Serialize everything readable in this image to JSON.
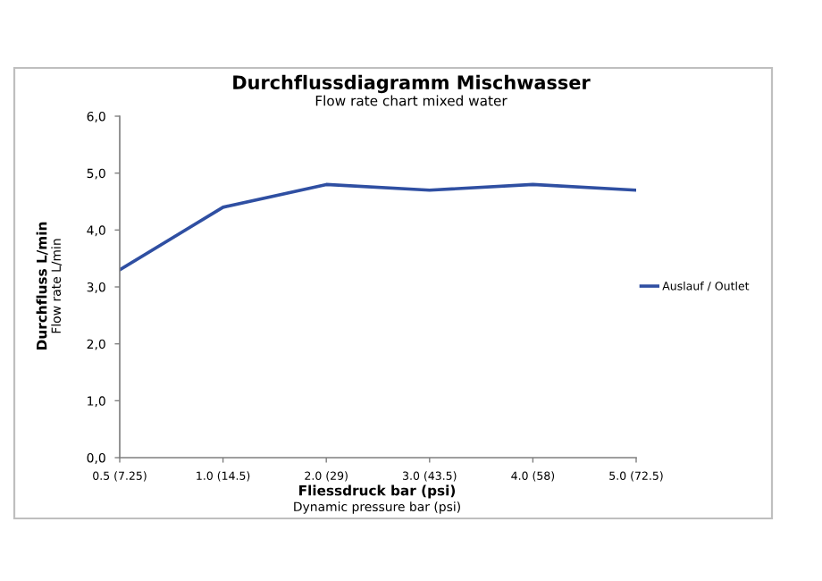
{
  "chart_data": {
    "type": "line",
    "title": "Durchflussdiagramm Mischwasser",
    "subtitle": "Flow rate chart mixed water",
    "xlabel": "Fliessdruck bar (psi)\nDynamic pressure bar (psi)",
    "ylabel": "Durchfluss L/min\nFlow rate L/min",
    "categories": [
      "0.5 (7.25)",
      "1.0 (14.5)",
      "2.0 (29)",
      "3.0 (43.5)",
      "4.0 (58)",
      "5.0 (72.5)"
    ],
    "series": [
      {
        "name": "Auslauf / Outlet",
        "color": "#2f4fa2",
        "values": [
          3.3,
          4.4,
          4.8,
          4.7,
          4.8,
          4.7
        ]
      }
    ],
    "ylim": [
      0,
      6
    ],
    "yticks": [
      {
        "value": 0,
        "label": "0,0"
      },
      {
        "value": 1,
        "label": "1,0"
      },
      {
        "value": 2,
        "label": "2,0"
      },
      {
        "value": 3,
        "label": "3,0"
      },
      {
        "value": 4,
        "label": "4,0"
      },
      {
        "value": 5,
        "label": "5,0"
      },
      {
        "value": 6,
        "label": "6,0"
      }
    ],
    "legend": "right",
    "line_style": "solid",
    "marker": "none",
    "grid": false
  }
}
